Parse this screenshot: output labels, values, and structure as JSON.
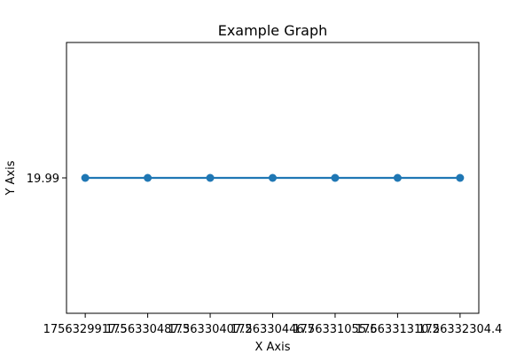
{
  "chart_data": {
    "type": "line",
    "title": "Example Graph",
    "xlabel": "X Axis",
    "ylabel": "Y Axis",
    "x_tick_labels": [
      "1756329917.5",
      "1756330487.3",
      "1756330407.2",
      "1756330446.7",
      "1756331055.6",
      "1756331310.2",
      "1756332304.4"
    ],
    "x_tick_labels_rendered_overlap_note": "",
    "y_tick_labels": [
      "19.99"
    ],
    "series": [
      {
        "name": "",
        "x": [
          0,
          1,
          2,
          3,
          4,
          5,
          6
        ],
        "y": [
          19.99,
          19.99,
          19.99,
          19.99,
          19.99,
          19.99,
          19.99
        ],
        "color": "#1f77b4",
        "marker": "circle"
      }
    ],
    "ylim": [
      19.94,
      20.04
    ],
    "grid": false,
    "legend": "none"
  }
}
